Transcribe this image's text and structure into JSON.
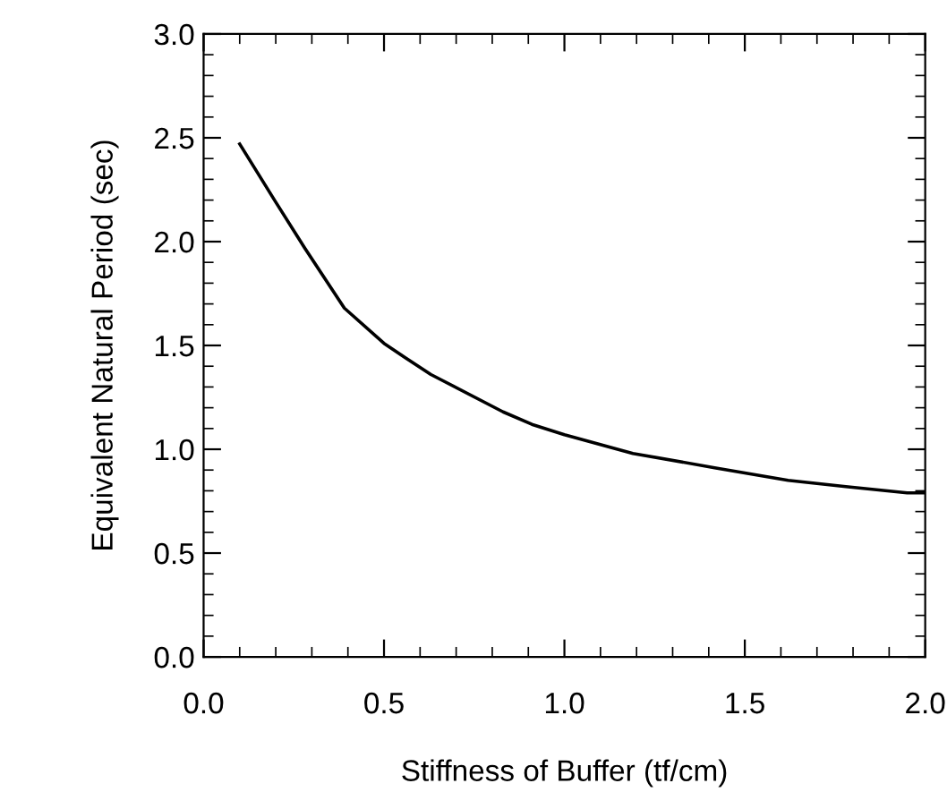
{
  "chart_data": {
    "type": "line",
    "xlabel": "Stiffness of Buffer (tf/cm)",
    "ylabel": "Equivalent Natural Period (sec)",
    "series": [
      {
        "color": "#000000",
        "x": [
          0.1,
          0.2,
          0.28,
          0.39,
          0.5,
          0.56,
          0.63,
          0.83,
          0.91,
          1.0,
          1.19,
          1.42,
          1.62,
          1.78,
          1.95,
          2.0
        ],
        "values": [
          2.47,
          2.19,
          1.97,
          1.68,
          1.51,
          1.44,
          1.36,
          1.18,
          1.12,
          1.07,
          0.98,
          0.91,
          0.85,
          0.82,
          0.79,
          0.79
        ]
      }
    ],
    "xlim": [
      0,
      2
    ],
    "ylim": [
      0,
      3
    ],
    "xticks": [
      {
        "value": 0,
        "label": "0.0"
      },
      0.5,
      {
        "value": 1,
        "label": "1.0"
      },
      1.5,
      {
        "value": 2,
        "label": "2.0"
      }
    ],
    "yticks": [
      {
        "value": 0,
        "label": "0.0"
      },
      0.5,
      {
        "value": 1,
        "label": "1.0"
      },
      1.5,
      {
        "value": 2,
        "label": "2.0"
      },
      2.5,
      {
        "value": 3,
        "label": "3.0"
      }
    ],
    "grid": false,
    "marker": "none",
    "line_style": "solid"
  }
}
